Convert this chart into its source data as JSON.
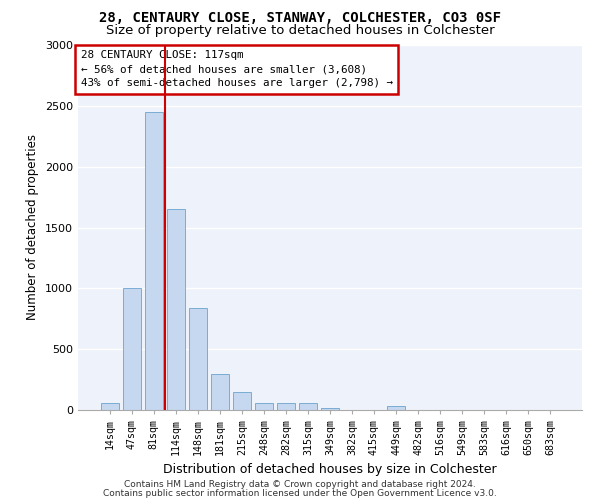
{
  "title_line1": "28, CENTAURY CLOSE, STANWAY, COLCHESTER, CO3 0SF",
  "title_line2": "Size of property relative to detached houses in Colchester",
  "xlabel": "Distribution of detached houses by size in Colchester",
  "ylabel": "Number of detached properties",
  "categories": [
    "14sqm",
    "47sqm",
    "81sqm",
    "114sqm",
    "148sqm",
    "181sqm",
    "215sqm",
    "248sqm",
    "282sqm",
    "315sqm",
    "349sqm",
    "382sqm",
    "415sqm",
    "449sqm",
    "482sqm",
    "516sqm",
    "549sqm",
    "583sqm",
    "616sqm",
    "650sqm",
    "683sqm"
  ],
  "values": [
    55,
    1000,
    2450,
    1650,
    840,
    300,
    145,
    60,
    60,
    55,
    20,
    0,
    0,
    30,
    0,
    0,
    0,
    0,
    0,
    0,
    0
  ],
  "bar_color": "#c5d8f0",
  "bar_edge_color": "#7aadd4",
  "background_color": "#eef2fa",
  "grid_color": "#ffffff",
  "vline_color": "#cc0000",
  "vline_pos": 2.5,
  "annotation_text": "28 CENTAURY CLOSE: 117sqm\n← 56% of detached houses are smaller (3,608)\n43% of semi-detached houses are larger (2,798) →",
  "annotation_box_color": "#cc0000",
  "footer_line1": "Contains HM Land Registry data © Crown copyright and database right 2024.",
  "footer_line2": "Contains public sector information licensed under the Open Government Licence v3.0.",
  "ylim": [
    0,
    3000
  ],
  "yticks": [
    0,
    500,
    1000,
    1500,
    2000,
    2500,
    3000
  ],
  "title_fontsize": 10,
  "subtitle_fontsize": 9.5,
  "xlabel_fontsize": 9,
  "ylabel_fontsize": 8.5,
  "tick_fontsize": 8,
  "footer_fontsize": 6.5
}
